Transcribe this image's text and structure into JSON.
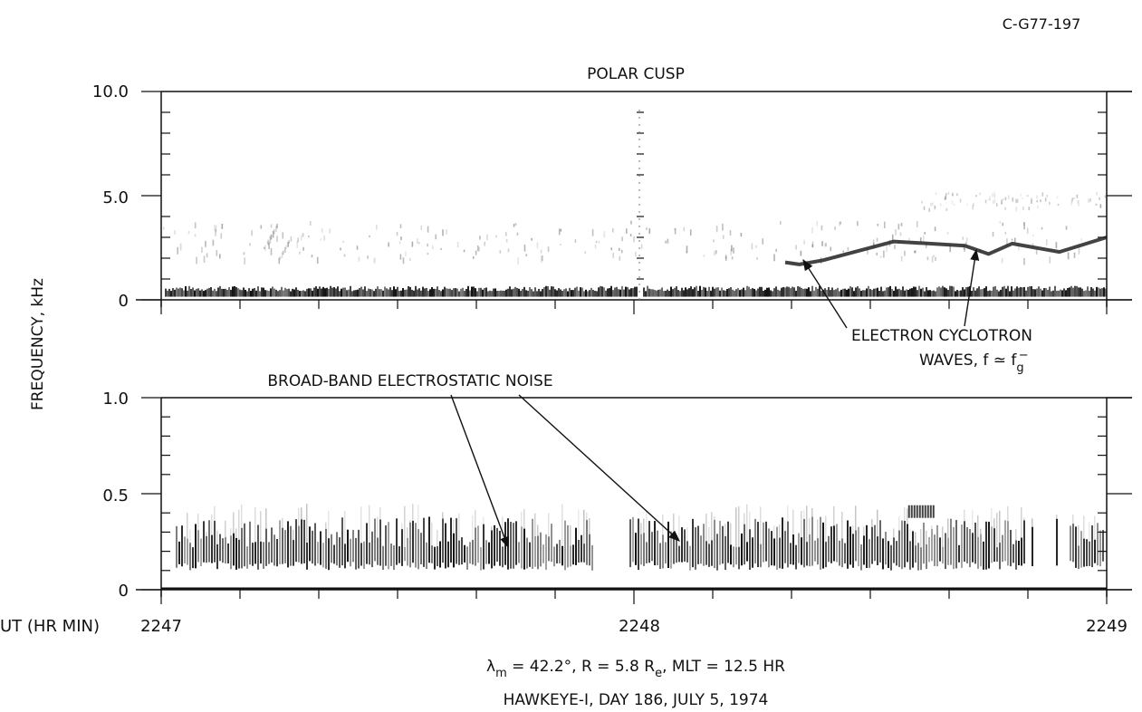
{
  "figure_id": "C-G77-197",
  "y_axis_label": "FREQUENCY, kHz",
  "ut_label": "UT (HR MIN)",
  "orbit_line": {
    "lambda_symbol": "λ",
    "lambda_sub": "m",
    "lambda_rest": " = 42.2°,   R = 5.8 R",
    "re_sub": "e",
    "tail": ",    MLT = 12.5 HR"
  },
  "mission_line": "HAWKEYE-I,  DAY 186,  JULY 5, 1974",
  "annotations": {
    "cyclotron_line1": "ELECTRON  CYCLOTRON",
    "cyclotron_line2a": "WAVES,  f ≃ f",
    "cyclotron_sub": "g",
    "cyclotron_sup": "−",
    "broadband": "BROAD-BAND  ELECTROSTATIC  NOISE"
  },
  "colors": {
    "ink": "#111111",
    "paper": "#ffffff"
  },
  "chart_data": [
    {
      "type": "heatmap",
      "title": "POLAR CUSP",
      "ylabel": "FREQUENCY, kHz",
      "ylim": [
        0,
        10.0
      ],
      "y_tick_labels": [
        "10.0",
        "5.0",
        "0"
      ],
      "x_tick_labels": [
        "2247",
        "2248",
        "2249"
      ],
      "features": [
        {
          "name": "ELECTRON CYCLOTRON WAVES",
          "x_minutes": [
            1.32,
            1.35,
            1.4,
            1.55,
            1.7,
            1.75,
            1.8,
            1.9,
            2.0
          ],
          "freq_khz": [
            1.8,
            1.7,
            1.9,
            2.8,
            2.6,
            2.2,
            2.7,
            2.3,
            3.0
          ]
        },
        {
          "name": "low-frequency band",
          "freq_range_khz": [
            0,
            0.6
          ],
          "x_range_minutes": [
            0,
            2.0
          ]
        }
      ]
    },
    {
      "type": "heatmap",
      "title": "",
      "ylim": [
        0,
        1.0
      ],
      "y_tick_labels": [
        "1.0",
        "0.5",
        "0"
      ],
      "x_tick_labels": [
        "2247",
        "2248",
        "2249"
      ],
      "features": [
        {
          "name": "BROAD-BAND ELECTROSTATIC NOISE",
          "freq_range_khz": [
            0.1,
            0.4
          ],
          "x_range_minutes": [
            0.05,
            2.0
          ]
        }
      ]
    }
  ]
}
